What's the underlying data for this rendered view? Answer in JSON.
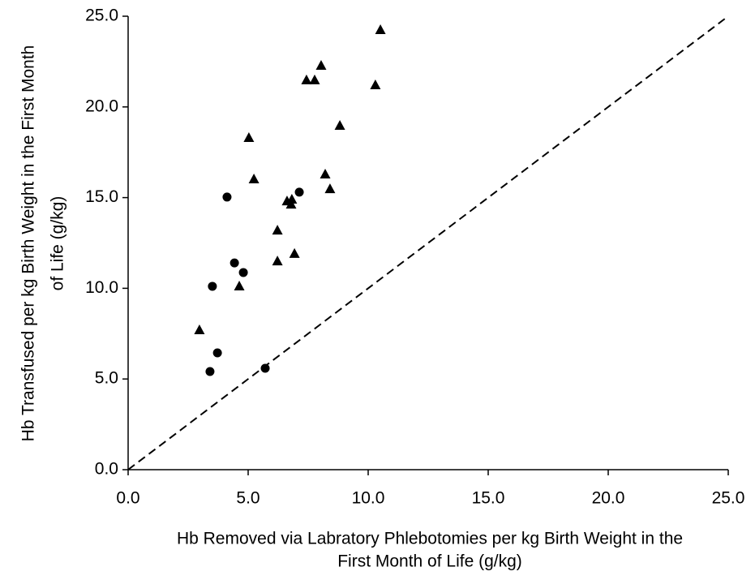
{
  "chart_data": {
    "type": "scatter",
    "xlabel": [
      "Hb Removed via Labratory Phlebotomies per kg Birth Weight in the",
      "First Month of Life (g/kg)"
    ],
    "ylabel": [
      "Hb Transfused per kg Birth Weight in the First Month",
      "of Life (g/kg)"
    ],
    "xlim": [
      0,
      25
    ],
    "ylim": [
      0,
      25
    ],
    "xticks": [
      {
        "value": 0,
        "label": "0.0"
      },
      {
        "value": 5,
        "label": "5.0"
      },
      {
        "value": 10,
        "label": "10.0"
      },
      {
        "value": 15,
        "label": "15.0"
      },
      {
        "value": 20,
        "label": "20.0"
      },
      {
        "value": 25,
        "label": "25.0"
      }
    ],
    "yticks": [
      {
        "value": 0,
        "label": "0.0"
      },
      {
        "value": 5,
        "label": "5.0"
      },
      {
        "value": 10,
        "label": "10.0"
      },
      {
        "value": 15,
        "label": "15.0"
      },
      {
        "value": 20,
        "label": "20.0"
      },
      {
        "value": 25,
        "label": "25.0"
      }
    ],
    "identity_line": true,
    "series": [
      {
        "marker": "circle",
        "color": "#000000",
        "x": [
          4.12,
          4.43,
          4.8,
          3.51,
          3.72,
          3.41,
          5.71,
          7.13
        ],
        "values": [
          15.03,
          11.4,
          10.87,
          10.11,
          6.44,
          5.41,
          5.59,
          15.3
        ]
      },
      {
        "marker": "triangle",
        "color": "#000000",
        "x": [
          10.51,
          8.04,
          7.43,
          7.77,
          10.3,
          8.82,
          5.03,
          5.24,
          8.21,
          8.41,
          6.62,
          6.82,
          6.79,
          6.22,
          6.22,
          6.93,
          4.63,
          2.97
        ],
        "values": [
          24.24,
          22.27,
          21.47,
          21.47,
          21.2,
          18.96,
          18.29,
          16.01,
          16.28,
          15.47,
          14.8,
          14.89,
          14.62,
          13.19,
          11.49,
          11.9,
          10.11,
          7.69
        ]
      }
    ]
  }
}
